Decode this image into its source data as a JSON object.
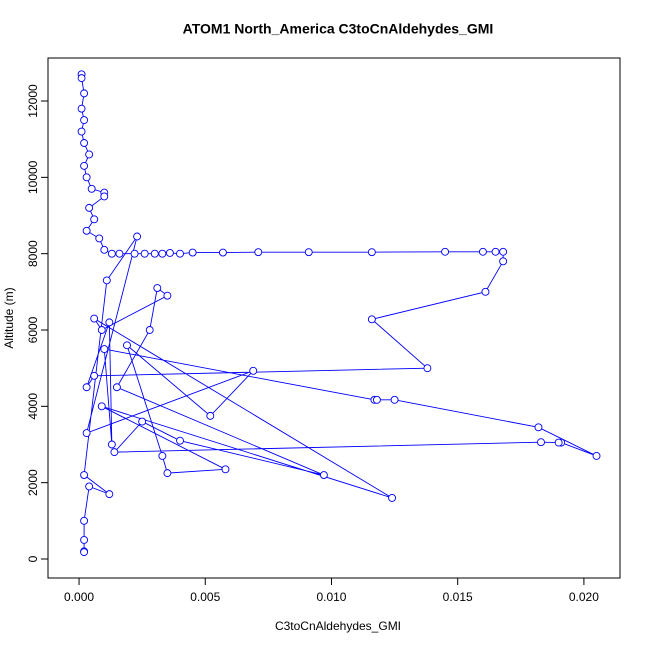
{
  "chart_data": {
    "type": "line",
    "title": "ATOM1 North_America C3toCnAldehydes_GMI",
    "x_label": "C3toCnAldehydes_GMI",
    "y_label": "Altitude (m)",
    "xlim": [
      -0.00123,
      0.02143
    ],
    "ylim": [
      -498,
      13127
    ],
    "xticks": [
      {
        "value": 0,
        "label": "0.000"
      },
      {
        "value": 0.005,
        "label": "0.005"
      },
      {
        "value": 0.01,
        "label": "0.010"
      },
      {
        "value": 0.015,
        "label": "0.015"
      },
      {
        "value": 0.02,
        "label": "0.020"
      }
    ],
    "yticks": [
      0,
      2000,
      4000,
      6000,
      8000,
      10000,
      12000
    ],
    "grid": false,
    "marker": "open-circle",
    "series": [
      {
        "color": "#0000ff",
        "x": [
          0.0001,
          0.0001,
          0.0002,
          0.0001,
          0.0002,
          0.0001,
          0.0002,
          0.0004,
          0.0002,
          0.0003,
          0.0005,
          0.001,
          0.001,
          0.0004,
          0.0006,
          0.0003,
          0.0008,
          0.001,
          0.0013,
          0.0016,
          0.0022,
          0.0026,
          0.003,
          0.0033,
          0.0036,
          0.004,
          0.0045,
          0.0057,
          0.0071,
          0.0091,
          0.0116,
          0.0145,
          0.016,
          0.0165,
          0.0168,
          0.0168,
          0.0161,
          0.0116,
          0.0138,
          0.0006,
          0.0003,
          0.0012,
          0.0013,
          0.001,
          0.0117,
          0.0118,
          0.0125,
          0.0182,
          0.0205,
          0.0191,
          0.019,
          0.0183,
          0.0014,
          0.0025,
          0.004,
          0.0097,
          0.0015,
          0.0028,
          0.0031,
          0.0035,
          0.0009,
          0.0006,
          0.0124,
          0.0009,
          0.0058,
          0.0035,
          0.0033,
          0.0019,
          0.0052,
          0.0069,
          0.0003,
          0.0023,
          0.0011,
          0.0002,
          0.0012,
          0.0004,
          0.0002,
          0.0002,
          0.0002,
          0.0002
        ],
        "values": [
          12700,
          12600,
          12200,
          11800,
          11500,
          11200,
          10900,
          10600,
          10300,
          10000,
          9700,
          9600,
          9500,
          9200,
          8900,
          8600,
          8400,
          8100,
          8000,
          8000,
          8000,
          8000,
          8000,
          8000,
          8020,
          8000,
          8030,
          8030,
          8040,
          8040,
          8040,
          8050,
          8050,
          8050,
          8050,
          7800,
          7000,
          6280,
          5000,
          4800,
          4500,
          6200,
          3000,
          5500,
          4170,
          4170,
          4170,
          3450,
          2700,
          3050,
          3050,
          3060,
          2800,
          3600,
          3100,
          2200,
          4500,
          6000,
          7100,
          6900,
          6000,
          6300,
          1600,
          4000,
          2350,
          2250,
          2700,
          5600,
          3750,
          4930,
          3300,
          8450,
          7300,
          2200,
          1700,
          1900,
          1000,
          500,
          200,
          180
        ]
      }
    ]
  }
}
